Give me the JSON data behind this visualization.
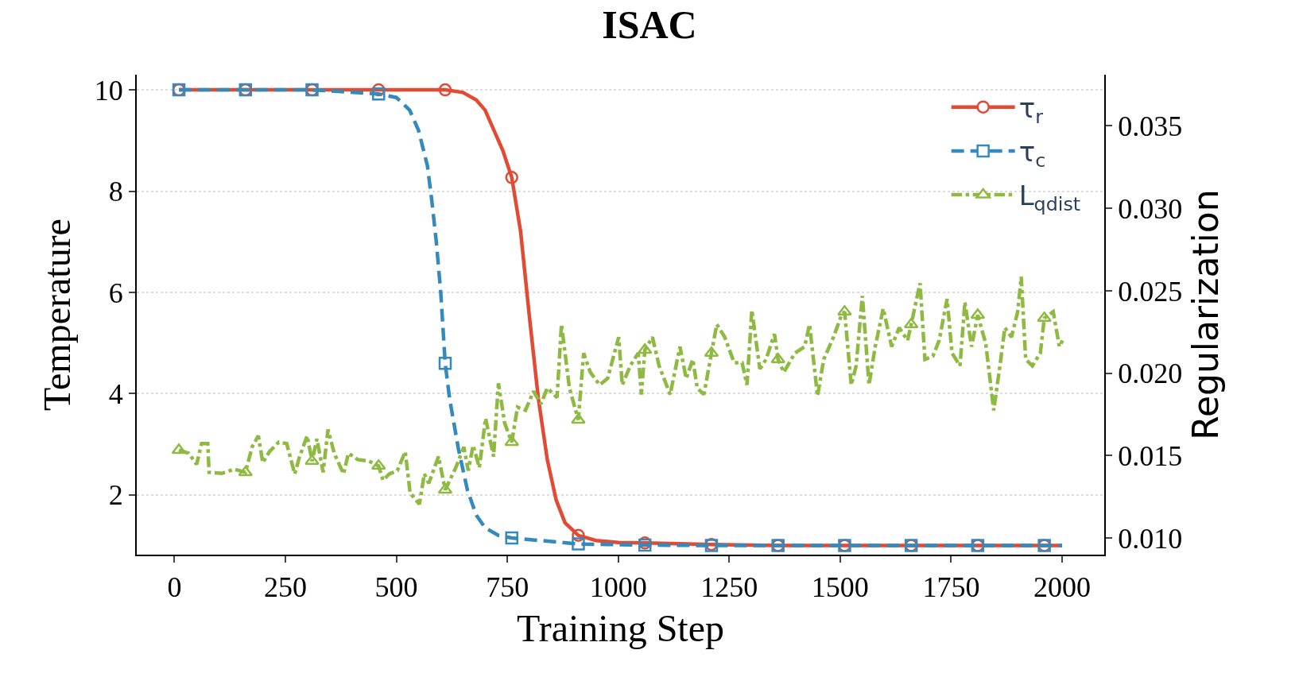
{
  "chart_data": {
    "type": "line",
    "title": "ISAC",
    "xlabel": "Training Step",
    "ylabel": "Temperature",
    "y2label": "Regularization",
    "xlim": [
      -85,
      2095
    ],
    "xticks": [
      0,
      250,
      500,
      750,
      1000,
      1250,
      1500,
      1750,
      2000
    ],
    "ylim": [
      0.82,
      10.3
    ],
    "yticks": [
      2,
      4,
      6,
      8,
      10
    ],
    "y2lim": [
      0.009,
      0.0381
    ],
    "y2ticks": [
      {
        "value": 0.01,
        "label": "0.010"
      },
      {
        "value": 0.015,
        "label": "0.015"
      },
      {
        "value": 0.02,
        "label": "0.020"
      },
      {
        "value": 0.025,
        "label": "0.025"
      },
      {
        "value": 0.03,
        "label": "0.030"
      },
      {
        "value": 0.035,
        "label": "0.035"
      }
    ],
    "grid": "y",
    "legend": "top right",
    "series": [
      {
        "name": "τ$_{r}$",
        "color": "#e24a33",
        "marker": "circle",
        "line_style": "solid",
        "x": [
          10,
          160,
          310,
          460,
          610,
          650,
          680,
          700,
          720,
          740,
          760,
          780,
          800,
          820,
          840,
          860,
          880,
          910,
          950,
          1000,
          1060,
          1210,
          1360,
          1510,
          1660,
          1810,
          1960,
          2000
        ],
        "values": [
          10,
          10,
          10,
          10,
          10,
          9.95,
          9.8,
          9.6,
          9.2,
          8.8,
          8.27,
          7.2,
          5.5,
          3.9,
          2.7,
          1.9,
          1.45,
          1.2,
          1.1,
          1.06,
          1.05,
          1.02,
          1.0,
          1.0,
          1.0,
          1.0,
          1.0,
          1.0
        ]
      },
      {
        "name": "τ$_{c}$",
        "color": "#348abd",
        "marker": "square",
        "line_style": "dashed",
        "x": [
          10,
          160,
          310,
          460,
          500,
          530,
          550,
          570,
          580,
          590,
          600,
          610,
          620,
          640,
          660,
          680,
          700,
          730,
          760,
          910,
          1060,
          1210,
          1360,
          1510,
          1660,
          1810,
          1960,
          2000
        ],
        "values": [
          10,
          10,
          10,
          9.92,
          9.85,
          9.6,
          9.2,
          8.5,
          7.8,
          7.0,
          6.0,
          4.6,
          3.9,
          2.9,
          2.1,
          1.6,
          1.35,
          1.2,
          1.15,
          1.03,
          1.01,
          1.0,
          1.0,
          1.0,
          1.0,
          1.0,
          1.0,
          1.0
        ]
      },
      {
        "type": "scatter",
        "color": "#8eba42",
        "marker": "triangle",
        "axis": "y2",
        "x": [
          10,
          160,
          310,
          460,
          610,
          760,
          910,
          1060,
          1210,
          1360,
          1510,
          1660,
          1810,
          1960
        ],
        "values": [
          0.01534,
          0.01399,
          0.01467,
          0.01438,
          0.01293,
          0.01582,
          0.01717,
          0.02141,
          0.02122,
          0.02084,
          0.02373,
          0.02296,
          0.02353,
          0.02334
        ]
      },
      {
        "name": "L$_{qdist}$",
        "color": "#8eba42",
        "line_style": "dashdot",
        "axis": "y2",
        "x": [
          10,
          32,
          50,
          61,
          75,
          78,
          107,
          135,
          160,
          175,
          189,
          199,
          214,
          235,
          253,
          271,
          281,
          299,
          310,
          321,
          335,
          346,
          360,
          381,
          392,
          413,
          438,
          460,
          470,
          484,
          502,
          520,
          531,
          552,
          563,
          573,
          595,
          610,
          634,
          652,
          662,
          673,
          687,
          701,
          719,
          730,
          744,
          760,
          773,
          791,
          809,
          826,
          840,
          862,
          872,
          890,
          910,
          922,
          937,
          958,
          976,
          1001,
          1009,
          1027,
          1045,
          1052,
          1060,
          1077,
          1092,
          1117,
          1139,
          1153,
          1168,
          1178,
          1193,
          1210,
          1222,
          1240,
          1261,
          1279,
          1290,
          1301,
          1319,
          1333,
          1352,
          1360,
          1373,
          1398,
          1420,
          1431,
          1449,
          1463,
          1485,
          1503,
          1510,
          1525,
          1536,
          1550,
          1565,
          1579,
          1597,
          1616,
          1633,
          1652,
          1660,
          1680,
          1691,
          1709,
          1723,
          1741,
          1752,
          1770,
          1781,
          1796,
          1810,
          1828,
          1846,
          1861,
          1871,
          1886,
          1900,
          1908,
          1918,
          1933,
          1951,
          1960,
          1980,
          1994,
          2001
        ],
        "values": [
          0.01534,
          0.01515,
          0.01447,
          0.01573,
          0.01573,
          0.01399,
          0.01393,
          0.01418,
          0.01399,
          0.01553,
          0.01621,
          0.01457,
          0.01524,
          0.01582,
          0.01573,
          0.01389,
          0.01486,
          0.01621,
          0.01467,
          0.01602,
          0.01399,
          0.01659,
          0.01515,
          0.01389,
          0.01515,
          0.01476,
          0.01467,
          0.01438,
          0.01351,
          0.01389,
          0.01409,
          0.01524,
          0.01274,
          0.01206,
          0.01389,
          0.01332,
          0.01495,
          0.01293,
          0.01428,
          0.01553,
          0.01409,
          0.01563,
          0.01428,
          0.01727,
          0.01495,
          0.01939,
          0.01698,
          0.01582,
          0.01794,
          0.01775,
          0.01891,
          0.01814,
          0.0191,
          0.01852,
          0.02296,
          0.0191,
          0.01717,
          0.02122,
          0.02006,
          0.01929,
          0.01968,
          0.02219,
          0.01929,
          0.02045,
          0.02122,
          0.01871,
          0.02141,
          0.02219,
          0.02045,
          0.01871,
          0.02161,
          0.01968,
          0.02084,
          0.0191,
          0.01871,
          0.02122,
          0.02296,
          0.02219,
          0.02064,
          0.02064,
          0.01929,
          0.02382,
          0.02026,
          0.02084,
          0.02238,
          0.02084,
          0.02006,
          0.02122,
          0.02161,
          0.02296,
          0.01862,
          0.02084,
          0.02219,
          0.02353,
          0.02373,
          0.01929,
          0.02045,
          0.02469,
          0.01929,
          0.02161,
          0.02392,
          0.02161,
          0.02276,
          0.02199,
          0.02296,
          0.02546,
          0.02084,
          0.02103,
          0.02199,
          0.0245,
          0.02122,
          0.02045,
          0.02431,
          0.02161,
          0.02353,
          0.0218,
          0.01775,
          0.02064,
          0.02276,
          0.02219,
          0.02373,
          0.02585,
          0.02084,
          0.02045,
          0.02122,
          0.02334,
          0.02373,
          0.02161,
          0.02199
        ]
      }
    ]
  }
}
